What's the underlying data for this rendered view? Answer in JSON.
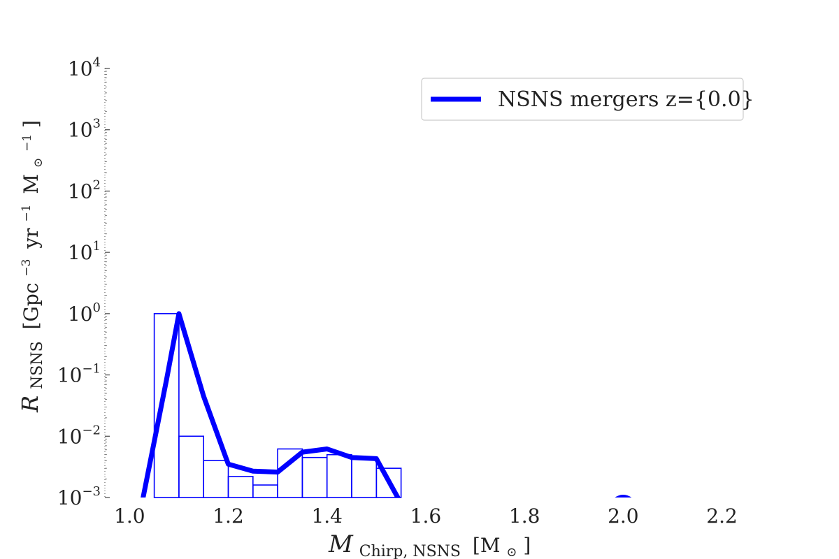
{
  "chart_data": {
    "type": "line",
    "title": "",
    "xlabel": {
      "main": "𝑀",
      "sub": "Chirp, NSNS",
      "unit_open": "[M",
      "unit_sub": "⊙",
      "unit_close": "]"
    },
    "ylabel": {
      "main": "𝑅",
      "sub": "NSNS",
      "unit_a": "[Gpc",
      "unit_a_sup": "−3",
      "unit_b": "yr",
      "unit_b_sup": "−1",
      "unit_c": "M",
      "unit_c_sub": "⊙",
      "unit_c_sup": "−1",
      "unit_close": "]"
    },
    "xlim": [
      0.95,
      2.27
    ],
    "ylim": [
      0.001,
      10000
    ],
    "yscale": "log",
    "x_ticks": [
      1.0,
      1.2,
      1.4,
      1.6,
      1.8,
      2.0,
      2.2
    ],
    "x_tick_labels": [
      "1.0",
      "1.2",
      "1.4",
      "1.6",
      "1.8",
      "2.0",
      "2.2"
    ],
    "y_ticks": [
      {
        "base": "10",
        "exp": "−3",
        "value": 0.001
      },
      {
        "base": "10",
        "exp": "−2",
        "value": 0.01
      },
      {
        "base": "10",
        "exp": "−1",
        "value": 0.1
      },
      {
        "base": "10",
        "exp": "0",
        "value": 1
      },
      {
        "base": "10",
        "exp": "1",
        "value": 10
      },
      {
        "base": "10",
        "exp": "2",
        "value": 100
      },
      {
        "base": "10",
        "exp": "3",
        "value": 1000
      },
      {
        "base": "10",
        "exp": "4",
        "value": 10000
      }
    ],
    "legend": {
      "position": "upper-right",
      "entries": [
        {
          "label": "NSNS mergers z={0.0}",
          "color": "#0000ff"
        }
      ]
    },
    "series": [
      {
        "name": "NSNS mergers z={0.0}",
        "kind": "line",
        "color": "#0000ff",
        "x": [
          1.025,
          1.075,
          1.1,
          1.15,
          1.2,
          1.25,
          1.3,
          1.35,
          1.4,
          1.45,
          1.5,
          1.55
        ],
        "y": [
          0.0008,
          0.085,
          1.0,
          0.045,
          0.0035,
          0.0027,
          0.0026,
          0.0055,
          0.0062,
          0.0045,
          0.0043,
          0.0008
        ]
      }
    ],
    "histogram": {
      "color": "#0000ff",
      "bin_edges": [
        1.05,
        1.1,
        1.15,
        1.2,
        1.25,
        1.3,
        1.35,
        1.4,
        1.45,
        1.5,
        1.55
      ],
      "values": [
        1.0,
        0.01,
        0.004,
        0.0022,
        0.0016,
        0.0062,
        0.0045,
        0.005,
        0.0042,
        0.003
      ]
    },
    "marker": {
      "x": 2.0,
      "y": 0.001,
      "color": "#0000ff"
    },
    "grid": false
  }
}
